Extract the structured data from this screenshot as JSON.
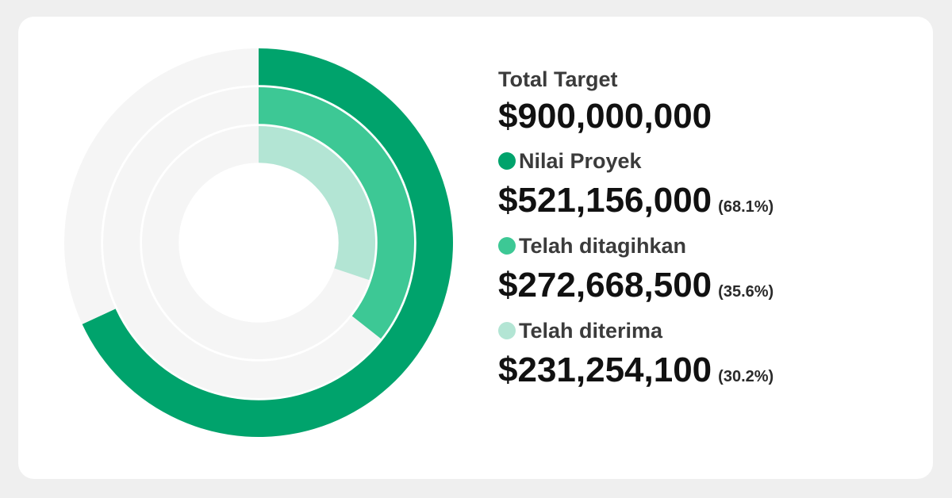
{
  "summary": {
    "total_label": "Total Target",
    "total_value": "$900,000,000"
  },
  "legend": [
    {
      "name": "Nilai Proyek",
      "value": "$521,156,000",
      "percent": "(68.1%)",
      "color": "#00a36c"
    },
    {
      "name": "Telah ditagihkan",
      "value": "$272,668,500",
      "percent": "(35.6%)",
      "color": "#3dc895"
    },
    {
      "name": "Telah diterima",
      "value": "$231,254,100",
      "percent": "(30.2%)",
      "color": "#b3e5d4"
    }
  ],
  "chart_data": {
    "type": "pie",
    "subtype": "concentric-radial-progress",
    "total": 900000000,
    "track_color": "#f5f5f5",
    "series": [
      {
        "name": "Nilai Proyek",
        "value": 521156000,
        "fraction": 0.681,
        "color": "#00a36c"
      },
      {
        "name": "Telah ditagihkan",
        "value": 272668500,
        "fraction": 0.356,
        "color": "#3dc895"
      },
      {
        "name": "Telah diterima",
        "value": 231254100,
        "fraction": 0.302,
        "color": "#b3e5d4"
      }
    ]
  }
}
